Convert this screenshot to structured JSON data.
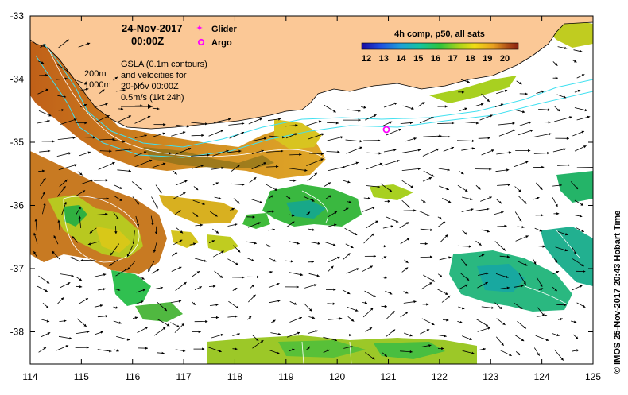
{
  "title": {
    "date": "24-Nov-2017",
    "time": "00:00Z"
  },
  "legend": {
    "glider_label": "Glider",
    "argo_label": "Argo",
    "glider_color": "#ff00ff",
    "argo_color": "#ff00ff"
  },
  "sla_note": {
    "line1": "GSLA (0.1m contours)",
    "line2": "and velocities for",
    "line3": "20-Nov 00:00Z",
    "line4": "0.5m/s (1kt 24h)"
  },
  "depth_labels": [
    "200m",
    "1000m"
  ],
  "colorbar": {
    "title": "4h comp, p50, all sats",
    "ticks": [
      "12",
      "13",
      "14",
      "15",
      "16",
      "17",
      "18",
      "19",
      "20"
    ],
    "stops": [
      "#1a0aa0",
      "#1f4fe0",
      "#1fa0d8",
      "#13c4a0",
      "#2fc43c",
      "#a8d41a",
      "#f0dc14",
      "#e8a020",
      "#b05018",
      "#8a2010"
    ]
  },
  "axes": {
    "x_ticks": [
      "114",
      "115",
      "116",
      "117",
      "118",
      "119",
      "120",
      "121",
      "122",
      "123",
      "124",
      "125"
    ],
    "y_ticks": [
      "-33",
      "-34",
      "-35",
      "-36",
      "-37",
      "-38"
    ]
  },
  "credit": "© IMOS 25-Nov-2017 20:43 Hobart Time",
  "colors": {
    "land": "#fbc896",
    "contour_depth": "#40e0f0",
    "sst_warm": "#c86020",
    "sst_mid": "#d8c818",
    "sst_cool": "#38c040"
  }
}
